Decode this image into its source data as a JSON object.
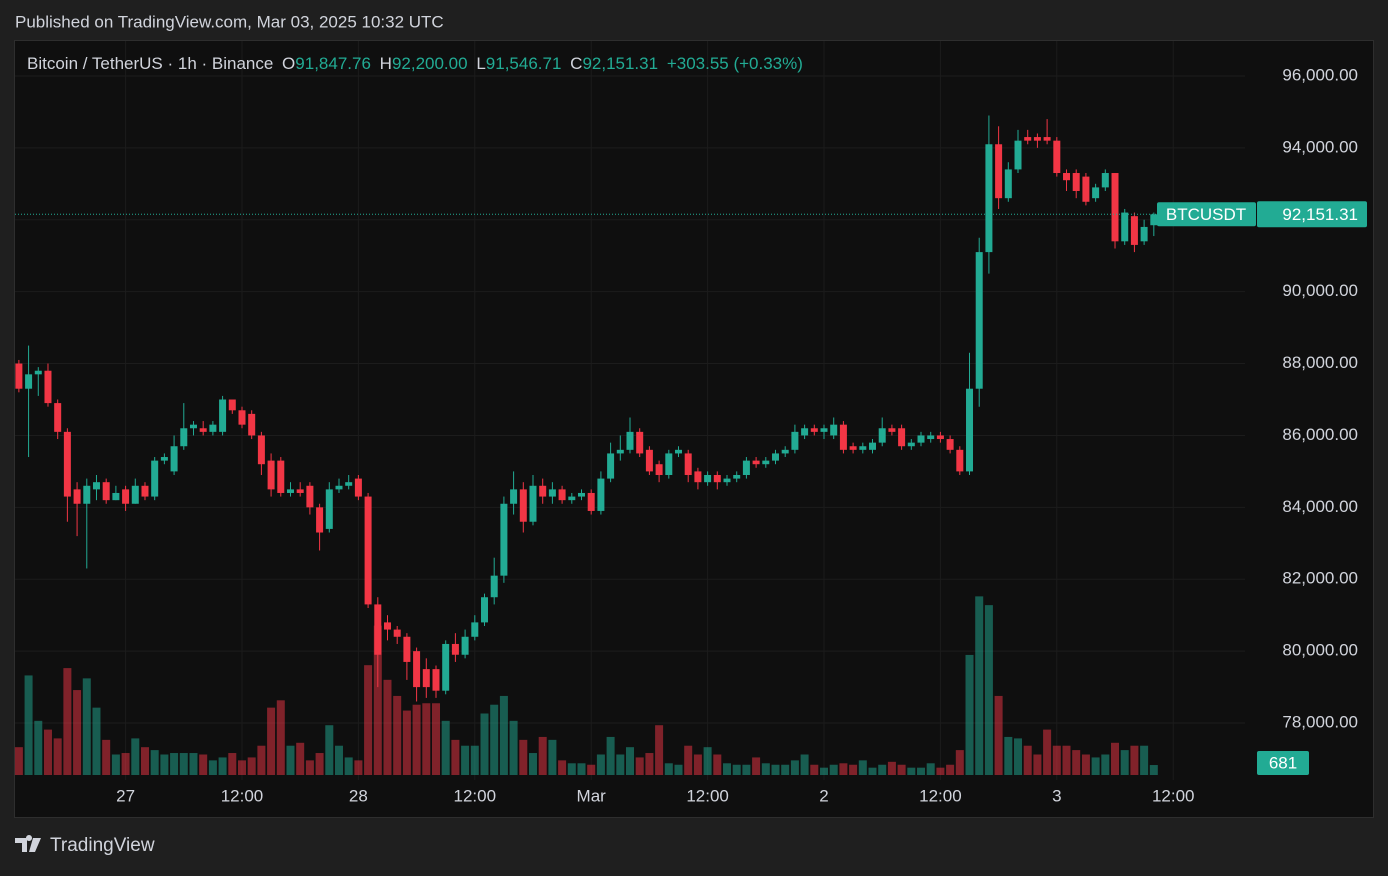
{
  "header": {
    "published": "Published on TradingView.com, Mar 03, 2025 10:32 UTC"
  },
  "footer": {
    "brand": "TradingView"
  },
  "chart_data": {
    "type": "candlestick",
    "legend": {
      "symbol": "Bitcoin / TetherUS · 1h · Binance",
      "o_label": "O",
      "o_value": "91,847.76",
      "h_label": "H",
      "h_value": "92,200.00",
      "l_label": "L",
      "l_value": "91,546.71",
      "c_label": "C",
      "c_value": "92,151.31",
      "change": "+303.55 (+0.33%)"
    },
    "last_label": {
      "name": "BTCUSDT",
      "price": "92,151.31",
      "volume": "681"
    },
    "up_color": "#22ab94",
    "down_color": "#f23645",
    "volume_up_color": "rgba(34,171,148,0.5)",
    "volume_down_color": "rgba(242,54,69,0.5)",
    "grid": true,
    "xlim": [
      -0.4,
      126.4
    ],
    "xticks": [
      {
        "value": 11,
        "label": "27"
      },
      {
        "value": 23,
        "label": "12:00"
      },
      {
        "value": 35,
        "label": "28"
      },
      {
        "value": 47,
        "label": "12:00"
      },
      {
        "value": 59,
        "label": "Mar"
      },
      {
        "value": 71,
        "label": "12:00"
      },
      {
        "value": 83,
        "label": "2"
      },
      {
        "value": 95,
        "label": "12:00"
      },
      {
        "value": 107,
        "label": "3"
      },
      {
        "value": 119,
        "label": "12:00"
      }
    ],
    "ylim": [
      77000,
      97000
    ],
    "yticks": [
      {
        "value": 78000,
        "label": "78,000.00"
      },
      {
        "value": 80000,
        "label": "80,000.00"
      },
      {
        "value": 82000,
        "label": "82,000.00"
      },
      {
        "value": 84000,
        "label": "84,000.00"
      },
      {
        "value": 86000,
        "label": "86,000.00"
      },
      {
        "value": 88000,
        "label": "88,000.00"
      },
      {
        "value": 90000,
        "label": "90,000.00"
      },
      {
        "value": 92000,
        "label": "92,000.00"
      },
      {
        "value": 94000,
        "label": "94,000.00"
      },
      {
        "value": 96000,
        "label": "96,000.00"
      }
    ],
    "volume_ylim": [
      0,
      14000
    ],
    "open": [
      88000,
      87300,
      87700,
      87800,
      86900,
      86100,
      84500,
      84100,
      84500,
      84700,
      84200,
      84500,
      84100,
      84600,
      84300,
      85300,
      85000,
      85700,
      86200,
      86200,
      86100,
      86100,
      87000,
      86700,
      86600,
      86000,
      85300,
      85300,
      84400,
      84500,
      84600,
      84000,
      83400,
      84500,
      84600,
      84800,
      84300,
      81300,
      80800,
      80600,
      80400,
      80000,
      79500,
      79500,
      78900,
      80200,
      79900,
      80400,
      80800,
      81500,
      82100,
      84100,
      84500,
      83600,
      84600,
      84300,
      84500,
      84200,
      84300,
      84400,
      83900,
      84800,
      85500,
      85600,
      86100,
      85600,
      85200,
      84900,
      85500,
      85500,
      85000,
      84700,
      84900,
      84700,
      84800,
      84900,
      85300,
      85200,
      85300,
      85500,
      85600,
      86000,
      86200,
      86100,
      86000,
      86300,
      85700,
      85600,
      85600,
      85800,
      86200,
      86200,
      85700,
      85800,
      85900,
      86000,
      85900,
      85600,
      85000,
      87300,
      91100,
      94100,
      92600,
      93400,
      94300,
      94300,
      94300,
      94200,
      93300,
      93300,
      93200,
      92600,
      92900,
      93300,
      91400,
      92100,
      91400,
      91847.76
    ],
    "high": [
      88100,
      88500,
      87900,
      88000,
      87000,
      86200,
      84700,
      84800,
      84900,
      84800,
      84600,
      84600,
      84800,
      84700,
      85400,
      85500,
      86000,
      86900,
      86400,
      86400,
      86400,
      87100,
      87000,
      86800,
      86700,
      86100,
      85500,
      85400,
      84700,
      84700,
      84700,
      84100,
      84700,
      84800,
      84900,
      84900,
      84400,
      81500,
      81000,
      80700,
      80500,
      80100,
      79800,
      79600,
      80300,
      80500,
      80600,
      81000,
      81600,
      82600,
      84300,
      85000,
      84700,
      84900,
      84800,
      84700,
      84600,
      84400,
      84500,
      84500,
      85000,
      85800,
      86000,
      86500,
      86200,
      85700,
      85300,
      85600,
      85700,
      85600,
      85100,
      85000,
      85000,
      84900,
      85000,
      85400,
      85400,
      85400,
      85600,
      85700,
      86300,
      86300,
      86300,
      86300,
      86500,
      86400,
      85800,
      85800,
      85900,
      86500,
      86300,
      86300,
      85900,
      86100,
      86100,
      86100,
      86000,
      85700,
      88300,
      91500,
      94900,
      94600,
      93600,
      94500,
      94500,
      94400,
      94800,
      94300,
      93400,
      93400,
      93300,
      93000,
      93400,
      93300,
      92300,
      92200,
      92000,
      92200
    ],
    "low": [
      87200,
      85400,
      87100,
      86800,
      85900,
      83600,
      83200,
      82300,
      84200,
      84100,
      84200,
      83900,
      84100,
      84200,
      84200,
      85200,
      84900,
      85600,
      86000,
      86000,
      86000,
      86000,
      86600,
      86200,
      85900,
      84900,
      84300,
      84300,
      84300,
      84300,
      83800,
      82800,
      83300,
      84400,
      84500,
      84200,
      81200,
      79000,
      80300,
      80200,
      79200,
      78600,
      78700,
      78700,
      78800,
      79700,
      79800,
      80300,
      80700,
      81300,
      81900,
      83800,
      83300,
      83500,
      84100,
      84100,
      84100,
      84100,
      84200,
      83800,
      83800,
      84700,
      85300,
      85500,
      85400,
      84900,
      84700,
      84800,
      85400,
      84700,
      84500,
      84600,
      84500,
      84600,
      84700,
      84800,
      85100,
      85100,
      85200,
      85400,
      85500,
      85900,
      86000,
      85900,
      85900,
      85500,
      85500,
      85500,
      85500,
      85700,
      86000,
      85600,
      85600,
      85700,
      85800,
      85800,
      85500,
      84900,
      84900,
      86800,
      90500,
      92300,
      92500,
      93300,
      94100,
      94000,
      94100,
      93200,
      92800,
      92600,
      92400,
      92500,
      92800,
      91200,
      91300,
      91100,
      91300,
      91546.71
    ],
    "close": [
      87300,
      87700,
      87800,
      86900,
      86100,
      84300,
      84100,
      84600,
      84700,
      84200,
      84400,
      84100,
      84600,
      84300,
      85300,
      85400,
      85700,
      86200,
      86300,
      86100,
      86300,
      87000,
      86700,
      86300,
      86000,
      85200,
      84500,
      84400,
      84500,
      84400,
      84000,
      83300,
      84500,
      84600,
      84700,
      84300,
      81300,
      79900,
      80600,
      80400,
      79700,
      79000,
      79000,
      78900,
      80200,
      79900,
      80400,
      80800,
      81500,
      82100,
      84100,
      84500,
      83600,
      84600,
      84300,
      84500,
      84200,
      84300,
      84400,
      83900,
      84800,
      85500,
      85600,
      86100,
      85500,
      85000,
      84900,
      85500,
      85600,
      84900,
      84700,
      84900,
      84700,
      84800,
      84900,
      85300,
      85200,
      85300,
      85500,
      85600,
      86100,
      86200,
      86100,
      86200,
      86300,
      85600,
      85600,
      85700,
      85800,
      86200,
      86100,
      85700,
      85800,
      86000,
      86000,
      85900,
      85600,
      85000,
      87300,
      91100,
      94100,
      92600,
      93400,
      94200,
      94200,
      94200,
      94200,
      93300,
      93100,
      92800,
      92500,
      92900,
      93300,
      91400,
      92200,
      91300,
      91800,
      92151.31
    ],
    "volume": [
      1900,
      6800,
      3700,
      3100,
      2500,
      7300,
      5800,
      6600,
      4600,
      2400,
      1400,
      1500,
      2500,
      1900,
      1700,
      1400,
      1500,
      1500,
      1500,
      1400,
      1000,
      1200,
      1500,
      1000,
      1200,
      2000,
      4600,
      5100,
      2000,
      2200,
      1000,
      1500,
      3400,
      2000,
      1200,
      1000,
      7500,
      10200,
      6500,
      5400,
      4400,
      4800,
      4900,
      4900,
      3700,
      2400,
      2000,
      2000,
      4200,
      4800,
      5400,
      3700,
      2400,
      1500,
      2600,
      2400,
      1000,
      800,
      800,
      700,
      1400,
      2600,
      1400,
      1900,
      1200,
      1500,
      3400,
      800,
      700,
      2000,
      1400,
      1900,
      1400,
      800,
      700,
      700,
      1200,
      800,
      700,
      700,
      1000,
      1400,
      700,
      500,
      700,
      800,
      700,
      1000,
      500,
      700,
      900,
      700,
      500,
      500,
      800,
      500,
      700,
      1700,
      8200,
      12200,
      11600,
      5400,
      2600,
      2500,
      2000,
      1400,
      3100,
      2000,
      2000,
      1700,
      1400,
      1200,
      1400,
      2200,
      1700,
      2000,
      2000,
      681
    ]
  }
}
